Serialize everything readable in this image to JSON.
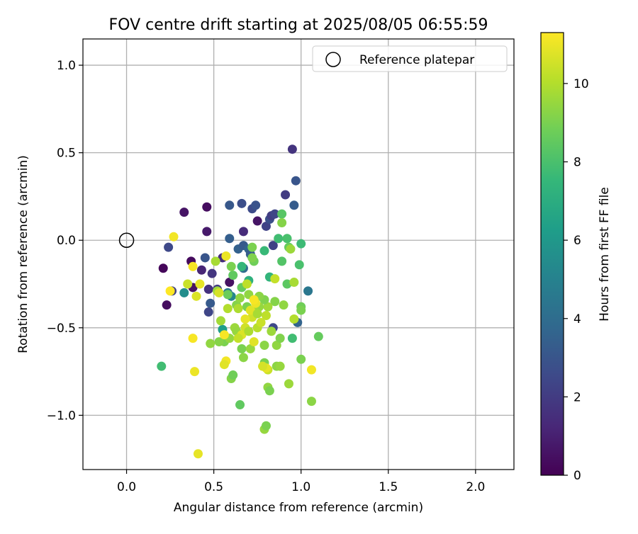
{
  "chart_data": {
    "type": "scatter",
    "title": "FOV centre drift starting at 2025/08/05 06:55:59",
    "xlabel": "Angular distance from reference (arcmin)",
    "ylabel": "Rotation from reference (arcmin)",
    "xlim": [
      -0.25,
      2.22
    ],
    "ylim": [
      -1.31,
      1.15
    ],
    "xticks": [
      0.0,
      0.5,
      1.0,
      1.5,
      2.0
    ],
    "xtick_labels": [
      "0.0",
      "0.5",
      "1.0",
      "1.5",
      "2.0"
    ],
    "yticks": [
      -1.0,
      -0.5,
      0.0,
      0.5,
      1.0
    ],
    "ytick_labels": [
      "−1.0",
      "−0.5",
      "0.0",
      "0.5",
      "1.0"
    ],
    "grid": true,
    "legend": {
      "position": "top-right",
      "entries": [
        "Reference platepar"
      ]
    },
    "reference": {
      "x": 0.0,
      "y": 0.0,
      "label": "Reference platepar",
      "marker": "open-circle"
    },
    "colorbar": {
      "label": "Hours from first FF file",
      "colormap": "viridis",
      "range": [
        0,
        11.3
      ],
      "ticks": [
        0,
        2,
        4,
        6,
        8,
        10
      ],
      "tick_labels": [
        "0",
        "2",
        "4",
        "6",
        "8",
        "10"
      ]
    },
    "colormap_stops": [
      "#440154",
      "#482878",
      "#3e4989",
      "#31688e",
      "#26828e",
      "#1f9e89",
      "#35b779",
      "#6ece58",
      "#b5de2b",
      "#fde725"
    ],
    "points": [
      {
        "x": 0.21,
        "y": -0.16,
        "t": 0.2
      },
      {
        "x": 0.23,
        "y": -0.37,
        "t": 0.4
      },
      {
        "x": 0.33,
        "y": 0.16,
        "t": 0.6
      },
      {
        "x": 0.46,
        "y": 0.19,
        "t": 0.4
      },
      {
        "x": 0.46,
        "y": 0.05,
        "t": 0.8
      },
      {
        "x": 0.37,
        "y": -0.12,
        "t": 0.3
      },
      {
        "x": 0.38,
        "y": -0.27,
        "t": 0.5
      },
      {
        "x": 0.43,
        "y": -0.17,
        "t": 1.2
      },
      {
        "x": 0.47,
        "y": -0.28,
        "t": 1.6
      },
      {
        "x": 0.49,
        "y": -0.19,
        "t": 1.8
      },
      {
        "x": 0.52,
        "y": -0.28,
        "t": 2.0
      },
      {
        "x": 0.55,
        "y": -0.1,
        "t": 1.5
      },
      {
        "x": 0.59,
        "y": -0.24,
        "t": 0.5
      },
      {
        "x": 0.26,
        "y": -0.29,
        "t": 2.2
      },
      {
        "x": 0.24,
        "y": -0.04,
        "t": 2.5
      },
      {
        "x": 0.45,
        "y": -0.1,
        "t": 3.0
      },
      {
        "x": 0.47,
        "y": -0.41,
        "t": 2.4
      },
      {
        "x": 0.48,
        "y": -0.36,
        "t": 3.2
      },
      {
        "x": 0.59,
        "y": 0.2,
        "t": 3.1
      },
      {
        "x": 0.66,
        "y": 0.21,
        "t": 2.7
      },
      {
        "x": 0.72,
        "y": 0.18,
        "t": 2.6
      },
      {
        "x": 0.74,
        "y": 0.2,
        "t": 2.9
      },
      {
        "x": 0.75,
        "y": 0.11,
        "t": 0.6
      },
      {
        "x": 0.67,
        "y": 0.05,
        "t": 1.4
      },
      {
        "x": 0.59,
        "y": 0.01,
        "t": 3.4
      },
      {
        "x": 0.64,
        "y": -0.05,
        "t": 3.5
      },
      {
        "x": 0.67,
        "y": -0.03,
        "t": 3.2
      },
      {
        "x": 0.7,
        "y": -0.05,
        "t": 3.6
      },
      {
        "x": 0.71,
        "y": -0.08,
        "t": 3.3
      },
      {
        "x": 0.67,
        "y": -0.16,
        "t": 4.0
      },
      {
        "x": 0.58,
        "y": -0.3,
        "t": 4.5
      },
      {
        "x": 0.6,
        "y": -0.32,
        "t": 5.2
      },
      {
        "x": 0.66,
        "y": -0.15,
        "t": 7.5
      },
      {
        "x": 0.8,
        "y": 0.08,
        "t": 2.3
      },
      {
        "x": 0.82,
        "y": 0.12,
        "t": 2.8
      },
      {
        "x": 0.83,
        "y": 0.14,
        "t": 2.1
      },
      {
        "x": 0.85,
        "y": 0.15,
        "t": 2.4
      },
      {
        "x": 0.91,
        "y": 0.26,
        "t": 2.0
      },
      {
        "x": 0.95,
        "y": 0.52,
        "t": 1.7
      },
      {
        "x": 0.97,
        "y": 0.34,
        "t": 3.0
      },
      {
        "x": 0.96,
        "y": 0.2,
        "t": 3.3
      },
      {
        "x": 0.84,
        "y": -0.03,
        "t": 2.2
      },
      {
        "x": 0.84,
        "y": -0.5,
        "t": 2.5
      },
      {
        "x": 0.98,
        "y": -0.47,
        "t": 3.6
      },
      {
        "x": 1.04,
        "y": -0.29,
        "t": 4.5
      },
      {
        "x": 0.33,
        "y": -0.3,
        "t": 5.5
      },
      {
        "x": 0.55,
        "y": -0.51,
        "t": 6.3
      },
      {
        "x": 0.2,
        "y": -0.72,
        "t": 7.8
      },
      {
        "x": 0.7,
        "y": -0.23,
        "t": 7.2
      },
      {
        "x": 0.79,
        "y": -0.06,
        "t": 7.6
      },
      {
        "x": 0.82,
        "y": -0.21,
        "t": 7.4
      },
      {
        "x": 0.87,
        "y": 0.01,
        "t": 7.8
      },
      {
        "x": 0.89,
        "y": 0.15,
        "t": 8.3
      },
      {
        "x": 0.89,
        "y": 0.1,
        "t": 9.2
      },
      {
        "x": 0.92,
        "y": 0.01,
        "t": 8.0
      },
      {
        "x": 0.93,
        "y": -0.04,
        "t": 8.6
      },
      {
        "x": 0.89,
        "y": -0.12,
        "t": 8.2
      },
      {
        "x": 1.0,
        "y": -0.02,
        "t": 7.7
      },
      {
        "x": 0.99,
        "y": -0.14,
        "t": 8.0
      },
      {
        "x": 0.92,
        "y": -0.25,
        "t": 8.4
      },
      {
        "x": 0.95,
        "y": -0.56,
        "t": 7.8
      },
      {
        "x": 1.0,
        "y": -0.38,
        "t": 8.8
      },
      {
        "x": 1.0,
        "y": -0.4,
        "t": 9.0
      },
      {
        "x": 1.0,
        "y": -0.68,
        "t": 9.0
      },
      {
        "x": 1.06,
        "y": -0.92,
        "t": 9.3
      },
      {
        "x": 1.1,
        "y": -0.55,
        "t": 8.6
      },
      {
        "x": 0.61,
        "y": -0.2,
        "t": 8.5
      },
      {
        "x": 0.6,
        "y": -0.15,
        "t": 9.0
      },
      {
        "x": 0.58,
        "y": -0.31,
        "t": 8.7
      },
      {
        "x": 0.63,
        "y": -0.37,
        "t": 9.2
      },
      {
        "x": 0.66,
        "y": -0.27,
        "t": 8.6
      },
      {
        "x": 0.7,
        "y": -0.31,
        "t": 9.4
      },
      {
        "x": 0.72,
        "y": -0.04,
        "t": 9.0
      },
      {
        "x": 0.73,
        "y": -0.12,
        "t": 8.8
      },
      {
        "x": 0.72,
        "y": -0.1,
        "t": 9.1
      },
      {
        "x": 0.62,
        "y": -0.5,
        "t": 9.6
      },
      {
        "x": 0.66,
        "y": -0.62,
        "t": 9.0
      },
      {
        "x": 0.67,
        "y": -0.67,
        "t": 9.3
      },
      {
        "x": 0.71,
        "y": -0.62,
        "t": 9.5
      },
      {
        "x": 0.6,
        "y": -0.79,
        "t": 9.2
      },
      {
        "x": 0.61,
        "y": -0.77,
        "t": 8.8
      },
      {
        "x": 0.65,
        "y": -0.94,
        "t": 8.5
      },
      {
        "x": 0.79,
        "y": -1.08,
        "t": 9.5
      },
      {
        "x": 0.8,
        "y": -1.06,
        "t": 9.0
      },
      {
        "x": 0.81,
        "y": -0.84,
        "t": 9.4
      },
      {
        "x": 0.82,
        "y": -0.86,
        "t": 9.0
      },
      {
        "x": 0.86,
        "y": -0.72,
        "t": 9.3
      },
      {
        "x": 0.88,
        "y": -0.72,
        "t": 9.5
      },
      {
        "x": 0.86,
        "y": -0.6,
        "t": 9.4
      },
      {
        "x": 0.88,
        "y": -0.56,
        "t": 9.1
      },
      {
        "x": 0.83,
        "y": -0.52,
        "t": 9.6
      },
      {
        "x": 0.79,
        "y": -0.6,
        "t": 9.3
      },
      {
        "x": 0.79,
        "y": -0.7,
        "t": 9.0
      },
      {
        "x": 0.85,
        "y": -0.35,
        "t": 9.2
      },
      {
        "x": 0.9,
        "y": -0.37,
        "t": 9.4
      },
      {
        "x": 0.81,
        "y": -0.38,
        "t": 9.7
      },
      {
        "x": 0.79,
        "y": -0.34,
        "t": 9.1
      },
      {
        "x": 0.76,
        "y": -0.32,
        "t": 9.3
      },
      {
        "x": 0.76,
        "y": -0.38,
        "t": 9.5
      },
      {
        "x": 0.73,
        "y": -0.4,
        "t": 9.7
      },
      {
        "x": 0.69,
        "y": -0.38,
        "t": 9.0
      },
      {
        "x": 0.65,
        "y": -0.33,
        "t": 9.4
      },
      {
        "x": 0.63,
        "y": -0.52,
        "t": 9.5
      },
      {
        "x": 0.56,
        "y": -0.58,
        "t": 9.0
      },
      {
        "x": 0.53,
        "y": -0.58,
        "t": 9.2
      },
      {
        "x": 0.48,
        "y": -0.59,
        "t": 9.4
      },
      {
        "x": 0.52,
        "y": -0.29,
        "t": 9.6
      },
      {
        "x": 0.51,
        "y": -0.12,
        "t": 9.8
      },
      {
        "x": 0.54,
        "y": -0.46,
        "t": 9.7
      },
      {
        "x": 0.59,
        "y": -0.56,
        "t": 9.5
      },
      {
        "x": 0.94,
        "y": -0.05,
        "t": 9.6
      },
      {
        "x": 0.96,
        "y": -0.24,
        "t": 9.8
      },
      {
        "x": 0.96,
        "y": -0.45,
        "t": 10.0
      },
      {
        "x": 0.93,
        "y": -0.82,
        "t": 9.6
      },
      {
        "x": 0.81,
        "y": -0.74,
        "t": 10.4
      },
      {
        "x": 0.8,
        "y": -0.43,
        "t": 10.2
      },
      {
        "x": 0.72,
        "y": -0.44,
        "t": 10.5
      },
      {
        "x": 0.71,
        "y": -0.4,
        "t": 10.8
      },
      {
        "x": 0.74,
        "y": -0.36,
        "t": 11.0
      },
      {
        "x": 0.73,
        "y": -0.34,
        "t": 11.2
      },
      {
        "x": 0.68,
        "y": -0.45,
        "t": 10.9
      },
      {
        "x": 0.68,
        "y": -0.5,
        "t": 10.5
      },
      {
        "x": 0.66,
        "y": -0.54,
        "t": 10.7
      },
      {
        "x": 0.64,
        "y": -0.56,
        "t": 10.3
      },
      {
        "x": 0.73,
        "y": -0.58,
        "t": 10.8
      },
      {
        "x": 0.75,
        "y": -0.5,
        "t": 10.1
      },
      {
        "x": 0.85,
        "y": -0.22,
        "t": 10.3
      },
      {
        "x": 0.8,
        "y": -0.73,
        "t": 10.9
      },
      {
        "x": 0.78,
        "y": -0.72,
        "t": 10.6
      },
      {
        "x": 0.57,
        "y": -0.69,
        "t": 11.1
      },
      {
        "x": 0.56,
        "y": -0.71,
        "t": 10.8
      },
      {
        "x": 0.56,
        "y": -0.54,
        "t": 11.2
      },
      {
        "x": 0.57,
        "y": -0.09,
        "t": 11.0
      },
      {
        "x": 0.53,
        "y": -0.3,
        "t": 10.6
      },
      {
        "x": 0.4,
        "y": -0.32,
        "t": 10.7
      },
      {
        "x": 0.42,
        "y": -0.25,
        "t": 10.9
      },
      {
        "x": 0.38,
        "y": -0.15,
        "t": 11.2
      },
      {
        "x": 0.35,
        "y": -0.25,
        "t": 10.4
      },
      {
        "x": 0.27,
        "y": 0.02,
        "t": 11.1
      },
      {
        "x": 0.25,
        "y": -0.29,
        "t": 11.3
      },
      {
        "x": 0.38,
        "y": -0.56,
        "t": 11.2
      },
      {
        "x": 0.39,
        "y": -0.75,
        "t": 11.0
      },
      {
        "x": 0.41,
        "y": -1.22,
        "t": 10.9
      },
      {
        "x": 1.06,
        "y": -0.74,
        "t": 11.1
      },
      {
        "x": 0.58,
        "y": -0.39,
        "t": 10.0
      },
      {
        "x": 0.64,
        "y": -0.39,
        "t": 9.9
      },
      {
        "x": 0.69,
        "y": -0.25,
        "t": 10.2
      },
      {
        "x": 0.77,
        "y": -0.47,
        "t": 10.4
      },
      {
        "x": 0.7,
        "y": -0.52,
        "t": 9.9
      },
      {
        "x": 0.75,
        "y": -0.42,
        "t": 9.8
      }
    ]
  }
}
